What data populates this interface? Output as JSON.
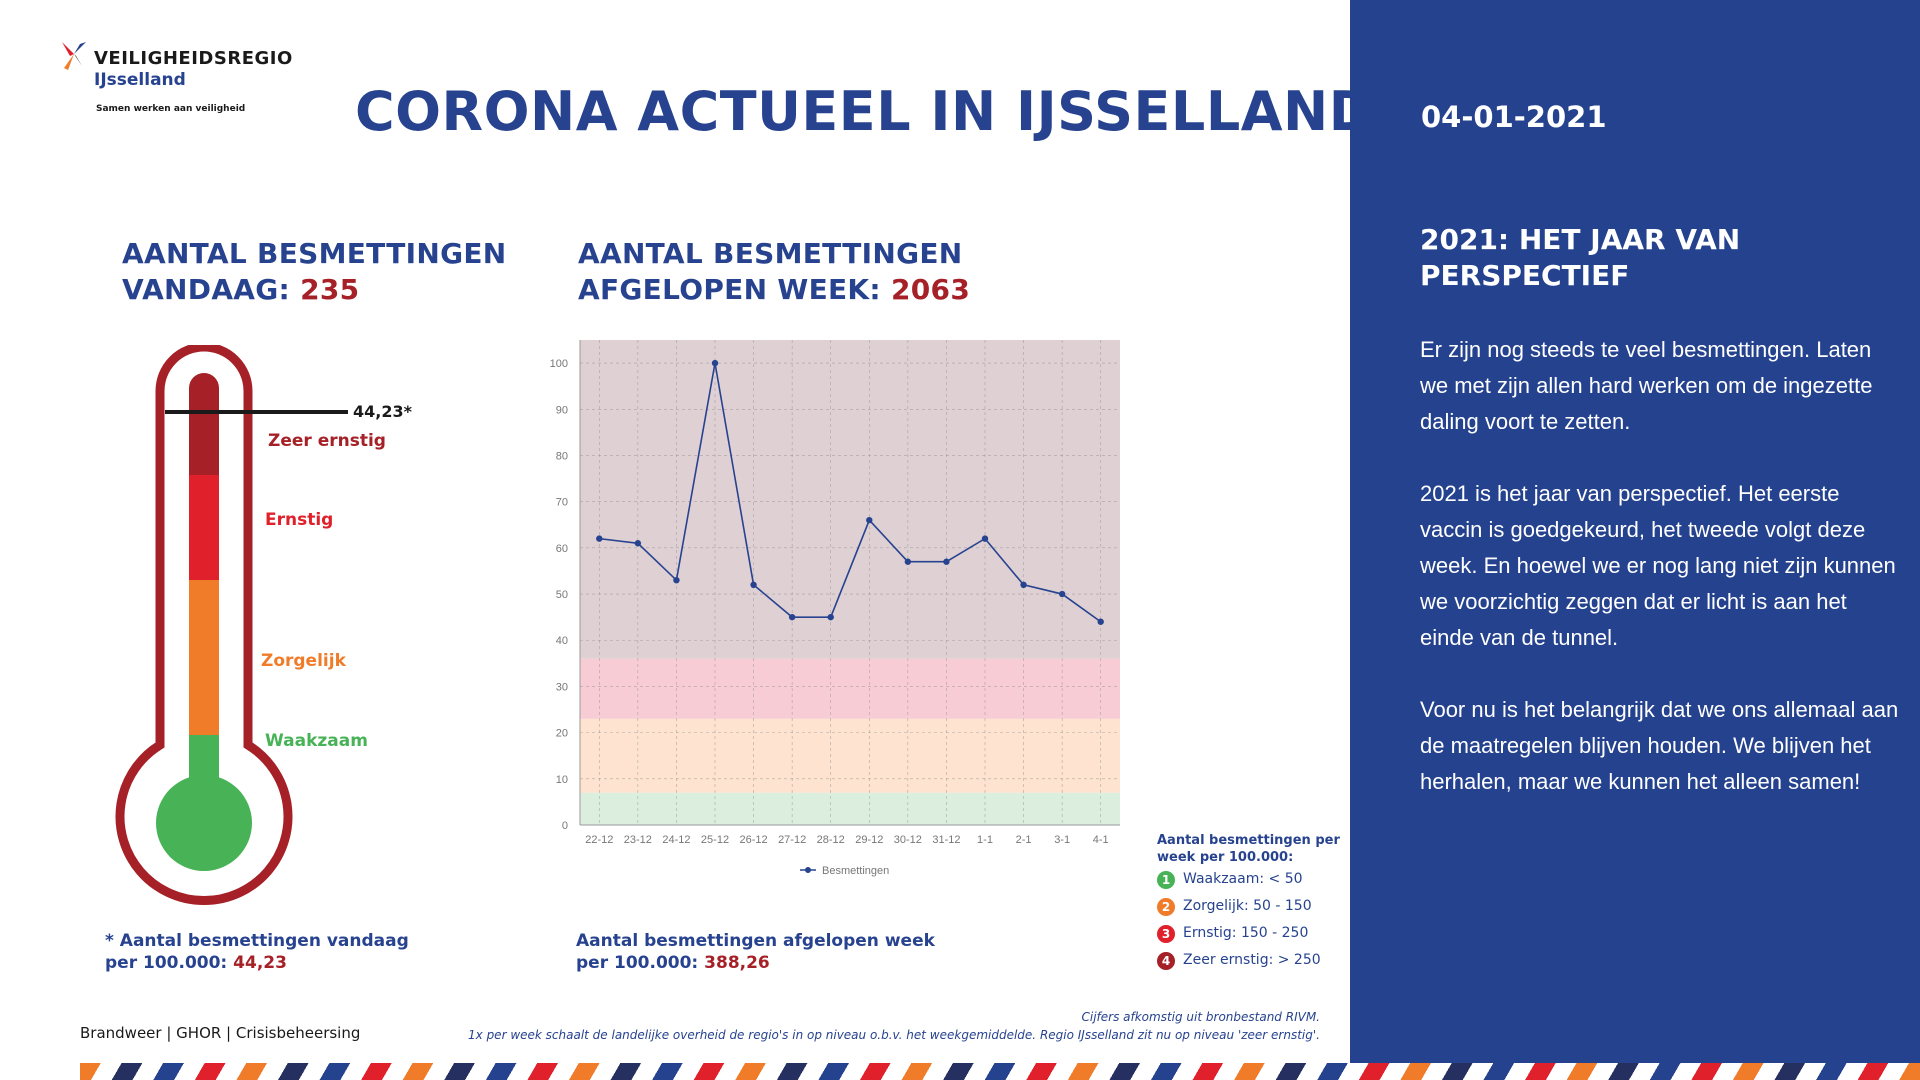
{
  "logo": {
    "org": "VEILIGHEIDSREGIO",
    "region": "IJsselland",
    "tagline": "Samen werken aan veiligheid"
  },
  "page_title": "CORONA ACTUEEL IN IJSSELLAND",
  "today": {
    "title_line1": "AANTAL BESMETTINGEN",
    "title_prefix": "VANDAAG: ",
    "count": "235",
    "note_line1": "* Aantal besmettingen vandaag",
    "note_prefix": "per 100.000: ",
    "per100k": "44,23"
  },
  "thermometer": {
    "marker_label": "44,23*",
    "levels": [
      {
        "label": "Zeer ernstig",
        "color": "#a52127"
      },
      {
        "label": "Ernstig",
        "color": "#e0202a"
      },
      {
        "label": "Zorgelijk",
        "color": "#f07c2a"
      },
      {
        "label": "Waakzaam",
        "color": "#47b356"
      }
    ],
    "frame_color": "#a52127"
  },
  "week": {
    "title_line1": "AANTAL BESMETTINGEN",
    "title_prefix": "AFGELOPEN WEEK: ",
    "count": "2063",
    "note_line1": "Aantal besmettingen afgelopen week",
    "note_prefix": "per 100.000: ",
    "per100k": "388,26"
  },
  "chart_data": {
    "type": "line",
    "categories": [
      "22-12",
      "23-12",
      "24-12",
      "25-12",
      "26-12",
      "27-12",
      "28-12",
      "29-12",
      "30-12",
      "31-12",
      "1-1",
      "2-1",
      "3-1",
      "4-1"
    ],
    "series": [
      {
        "name": "Besmettingen",
        "values": [
          62,
          61,
          53,
          100,
          52,
          45,
          45,
          66,
          57,
          57,
          62,
          52,
          50,
          44
        ],
        "color": "#27438f"
      }
    ],
    "yticks": [
      0,
      10,
      20,
      30,
      40,
      50,
      60,
      70,
      80,
      90,
      100
    ],
    "ylim": [
      0,
      105
    ],
    "bands": [
      {
        "from": 0,
        "to": 7,
        "color": "#dcefdf"
      },
      {
        "from": 7,
        "to": 23,
        "color": "#fde3d0"
      },
      {
        "from": 23,
        "to": 36,
        "color": "#f8ccd4"
      },
      {
        "from": 36,
        "to": 105,
        "color": "#dfd0d4"
      }
    ],
    "grid": true,
    "legend_position": "bottom"
  },
  "level_legend": {
    "title": "Aantal besmettingen per week per 100.000:",
    "items": [
      {
        "num": "1",
        "label": "Waakzaam: < 50",
        "color": "#47b356"
      },
      {
        "num": "2",
        "label": "Zorgelijk: 50 - 150",
        "color": "#f07c2a"
      },
      {
        "num": "3",
        "label": "Ernstig: 150 - 250",
        "color": "#e0202a"
      },
      {
        "num": "4",
        "label": "Zeer ernstig: > 250",
        "color": "#a52127"
      }
    ]
  },
  "footer": {
    "services": "Brandweer | GHOR | Crisisbeheersing",
    "source_line1": "Cijfers afkomstig uit bronbestand RIVM.",
    "source_line2": "1x per week schaalt de landelijke overheid de regio's in op niveau o.b.v. het weekgemiddelde. Regio IJsselland zit nu op niveau 'zeer ernstig'."
  },
  "sidebar": {
    "date": "04-01-2021",
    "heading_line1": "2021: HET JAAR VAN",
    "heading_line2": "PERSPECTIEF",
    "paragraphs": [
      "Er zijn nog steeds te veel besmettingen. Laten we met zijn allen hard werken om de ingezette daling voort te zetten.",
      "2021 is het jaar van perspectief. Het eerste vaccin is goedgekeurd, het tweede volgt deze week. En hoewel we er nog lang niet zijn kunnen we voorzichtig zeggen dat er licht is aan het einde van de tunnel.",
      "Voor nu is het belangrijk dat we ons allemaal aan de maatregelen blijven houden. We blijven het herhalen, maar we kunnen het alleen samen!"
    ],
    "background": "#25428f"
  }
}
